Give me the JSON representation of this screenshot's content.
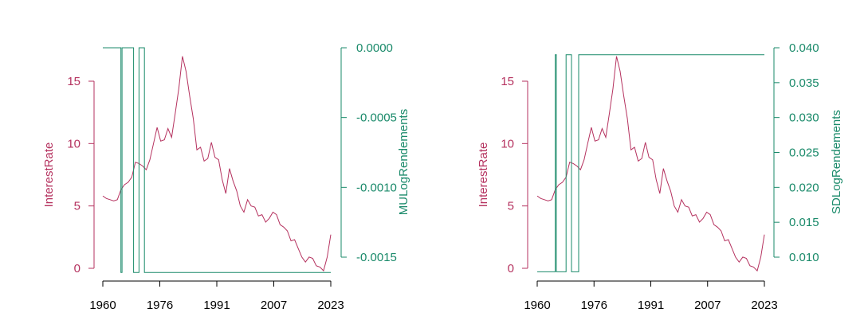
{
  "chart_data": [
    {
      "type": "line",
      "title": "",
      "xlabel": "",
      "ylabel_left": "InterestRate",
      "ylabel_right": "MULogRendements",
      "x_ticks": [
        "1960",
        "1976",
        "1991",
        "2007",
        "2023"
      ],
      "x_range": [
        1960,
        2023
      ],
      "y_left_ticks": [
        "0",
        "5",
        "10",
        "15"
      ],
      "y_left_range": [
        0,
        15
      ],
      "y_right_ticks": [
        "0.0000",
        "-0.0005",
        "-0.0010",
        "-0.0015"
      ],
      "y_right_range": [
        -0.0015,
        0.0
      ],
      "grid": false,
      "series": [
        {
          "axis": "left",
          "color": "#b5325f",
          "points": [
            [
              1960.0,
              5.8
            ],
            [
              1961.0,
              5.6
            ],
            [
              1962.0,
              5.5
            ],
            [
              1963.0,
              5.4
            ],
            [
              1964.0,
              5.5
            ],
            [
              1965.0,
              6.3
            ],
            [
              1966.0,
              6.7
            ],
            [
              1967.0,
              6.9
            ],
            [
              1968.0,
              7.3
            ],
            [
              1969.0,
              8.5
            ],
            [
              1970.0,
              8.4
            ],
            [
              1971.0,
              8.2
            ],
            [
              1972.0,
              7.9
            ],
            [
              1973.0,
              8.7
            ],
            [
              1974.0,
              10.0
            ],
            [
              1975.0,
              11.3
            ],
            [
              1976.0,
              10.2
            ],
            [
              1977.0,
              10.3
            ],
            [
              1978.0,
              11.2
            ],
            [
              1979.0,
              10.5
            ],
            [
              1980.0,
              12.4
            ],
            [
              1981.0,
              14.4
            ],
            [
              1982.0,
              17.0
            ],
            [
              1983.0,
              15.8
            ],
            [
              1984.0,
              13.8
            ],
            [
              1985.0,
              12.0
            ],
            [
              1986.0,
              9.5
            ],
            [
              1987.0,
              9.7
            ],
            [
              1988.0,
              8.6
            ],
            [
              1989.0,
              8.8
            ],
            [
              1990.0,
              10.1
            ],
            [
              1991.0,
              8.9
            ],
            [
              1992.0,
              8.7
            ],
            [
              1993.0,
              7.1
            ],
            [
              1994.0,
              6.0
            ],
            [
              1995.0,
              8.0
            ],
            [
              1996.0,
              7.0
            ],
            [
              1997.0,
              6.2
            ],
            [
              1998.0,
              5.0
            ],
            [
              1999.0,
              4.5
            ],
            [
              2000.0,
              5.5
            ],
            [
              2001.0,
              5.0
            ],
            [
              2002.0,
              4.9
            ],
            [
              2003.0,
              4.2
            ],
            [
              2004.0,
              4.3
            ],
            [
              2005.0,
              3.7
            ],
            [
              2006.0,
              4.0
            ],
            [
              2007.0,
              4.5
            ],
            [
              2008.0,
              4.3
            ],
            [
              2009.0,
              3.5
            ],
            [
              2010.0,
              3.3
            ],
            [
              2011.0,
              3.0
            ],
            [
              2012.0,
              2.2
            ],
            [
              2013.0,
              2.3
            ],
            [
              2014.0,
              1.6
            ],
            [
              2015.0,
              0.9
            ],
            [
              2016.0,
              0.5
            ],
            [
              2017.0,
              0.9
            ],
            [
              2018.0,
              0.8
            ],
            [
              2019.0,
              0.2
            ],
            [
              2020.0,
              0.1
            ],
            [
              2021.0,
              -0.2
            ],
            [
              2022.0,
              0.9
            ],
            [
              2023.0,
              2.7
            ]
          ]
        },
        {
          "axis": "right",
          "color": "#1a8a6a",
          "points": [
            [
              1960.0,
              0.0
            ],
            [
              1965.0,
              0.0
            ],
            [
              1965.0,
              -0.00161
            ],
            [
              1965.3,
              -0.00161
            ],
            [
              1965.3,
              0.0
            ],
            [
              1968.5,
              0.0
            ],
            [
              1968.5,
              -0.00161
            ],
            [
              1970.0,
              -0.00161
            ],
            [
              1970.0,
              0.0
            ],
            [
              1971.5,
              0.0
            ],
            [
              1971.5,
              -0.00161
            ],
            [
              2023.0,
              -0.00161
            ]
          ]
        }
      ]
    },
    {
      "type": "line",
      "title": "",
      "xlabel": "",
      "ylabel_left": "InterestRate",
      "ylabel_right": "SDLogRendements",
      "x_ticks": [
        "1960",
        "1976",
        "1991",
        "2007",
        "2023"
      ],
      "x_range": [
        1960,
        2023
      ],
      "y_left_ticks": [
        "0",
        "5",
        "10",
        "15"
      ],
      "y_left_range": [
        0,
        15
      ],
      "y_right_ticks": [
        "0.010",
        "0.015",
        "0.020",
        "0.025",
        "0.030",
        "0.035",
        "0.040"
      ],
      "y_right_range": [
        0.01,
        0.04
      ],
      "grid": false,
      "series": [
        {
          "axis": "left",
          "color": "#b5325f",
          "points": "same as left panel"
        },
        {
          "axis": "right",
          "color": "#1a8a6a",
          "points": [
            [
              1960.0,
              0.0079
            ],
            [
              1965.0,
              0.0079
            ],
            [
              1965.0,
              0.039
            ],
            [
              1965.3,
              0.039
            ],
            [
              1965.3,
              0.0079
            ],
            [
              1968.0,
              0.0079
            ],
            [
              1968.0,
              0.039
            ],
            [
              1969.5,
              0.039
            ],
            [
              1969.5,
              0.0079
            ],
            [
              1971.5,
              0.0079
            ],
            [
              1971.5,
              0.039
            ],
            [
              2023.0,
              0.039
            ]
          ]
        }
      ]
    }
  ]
}
